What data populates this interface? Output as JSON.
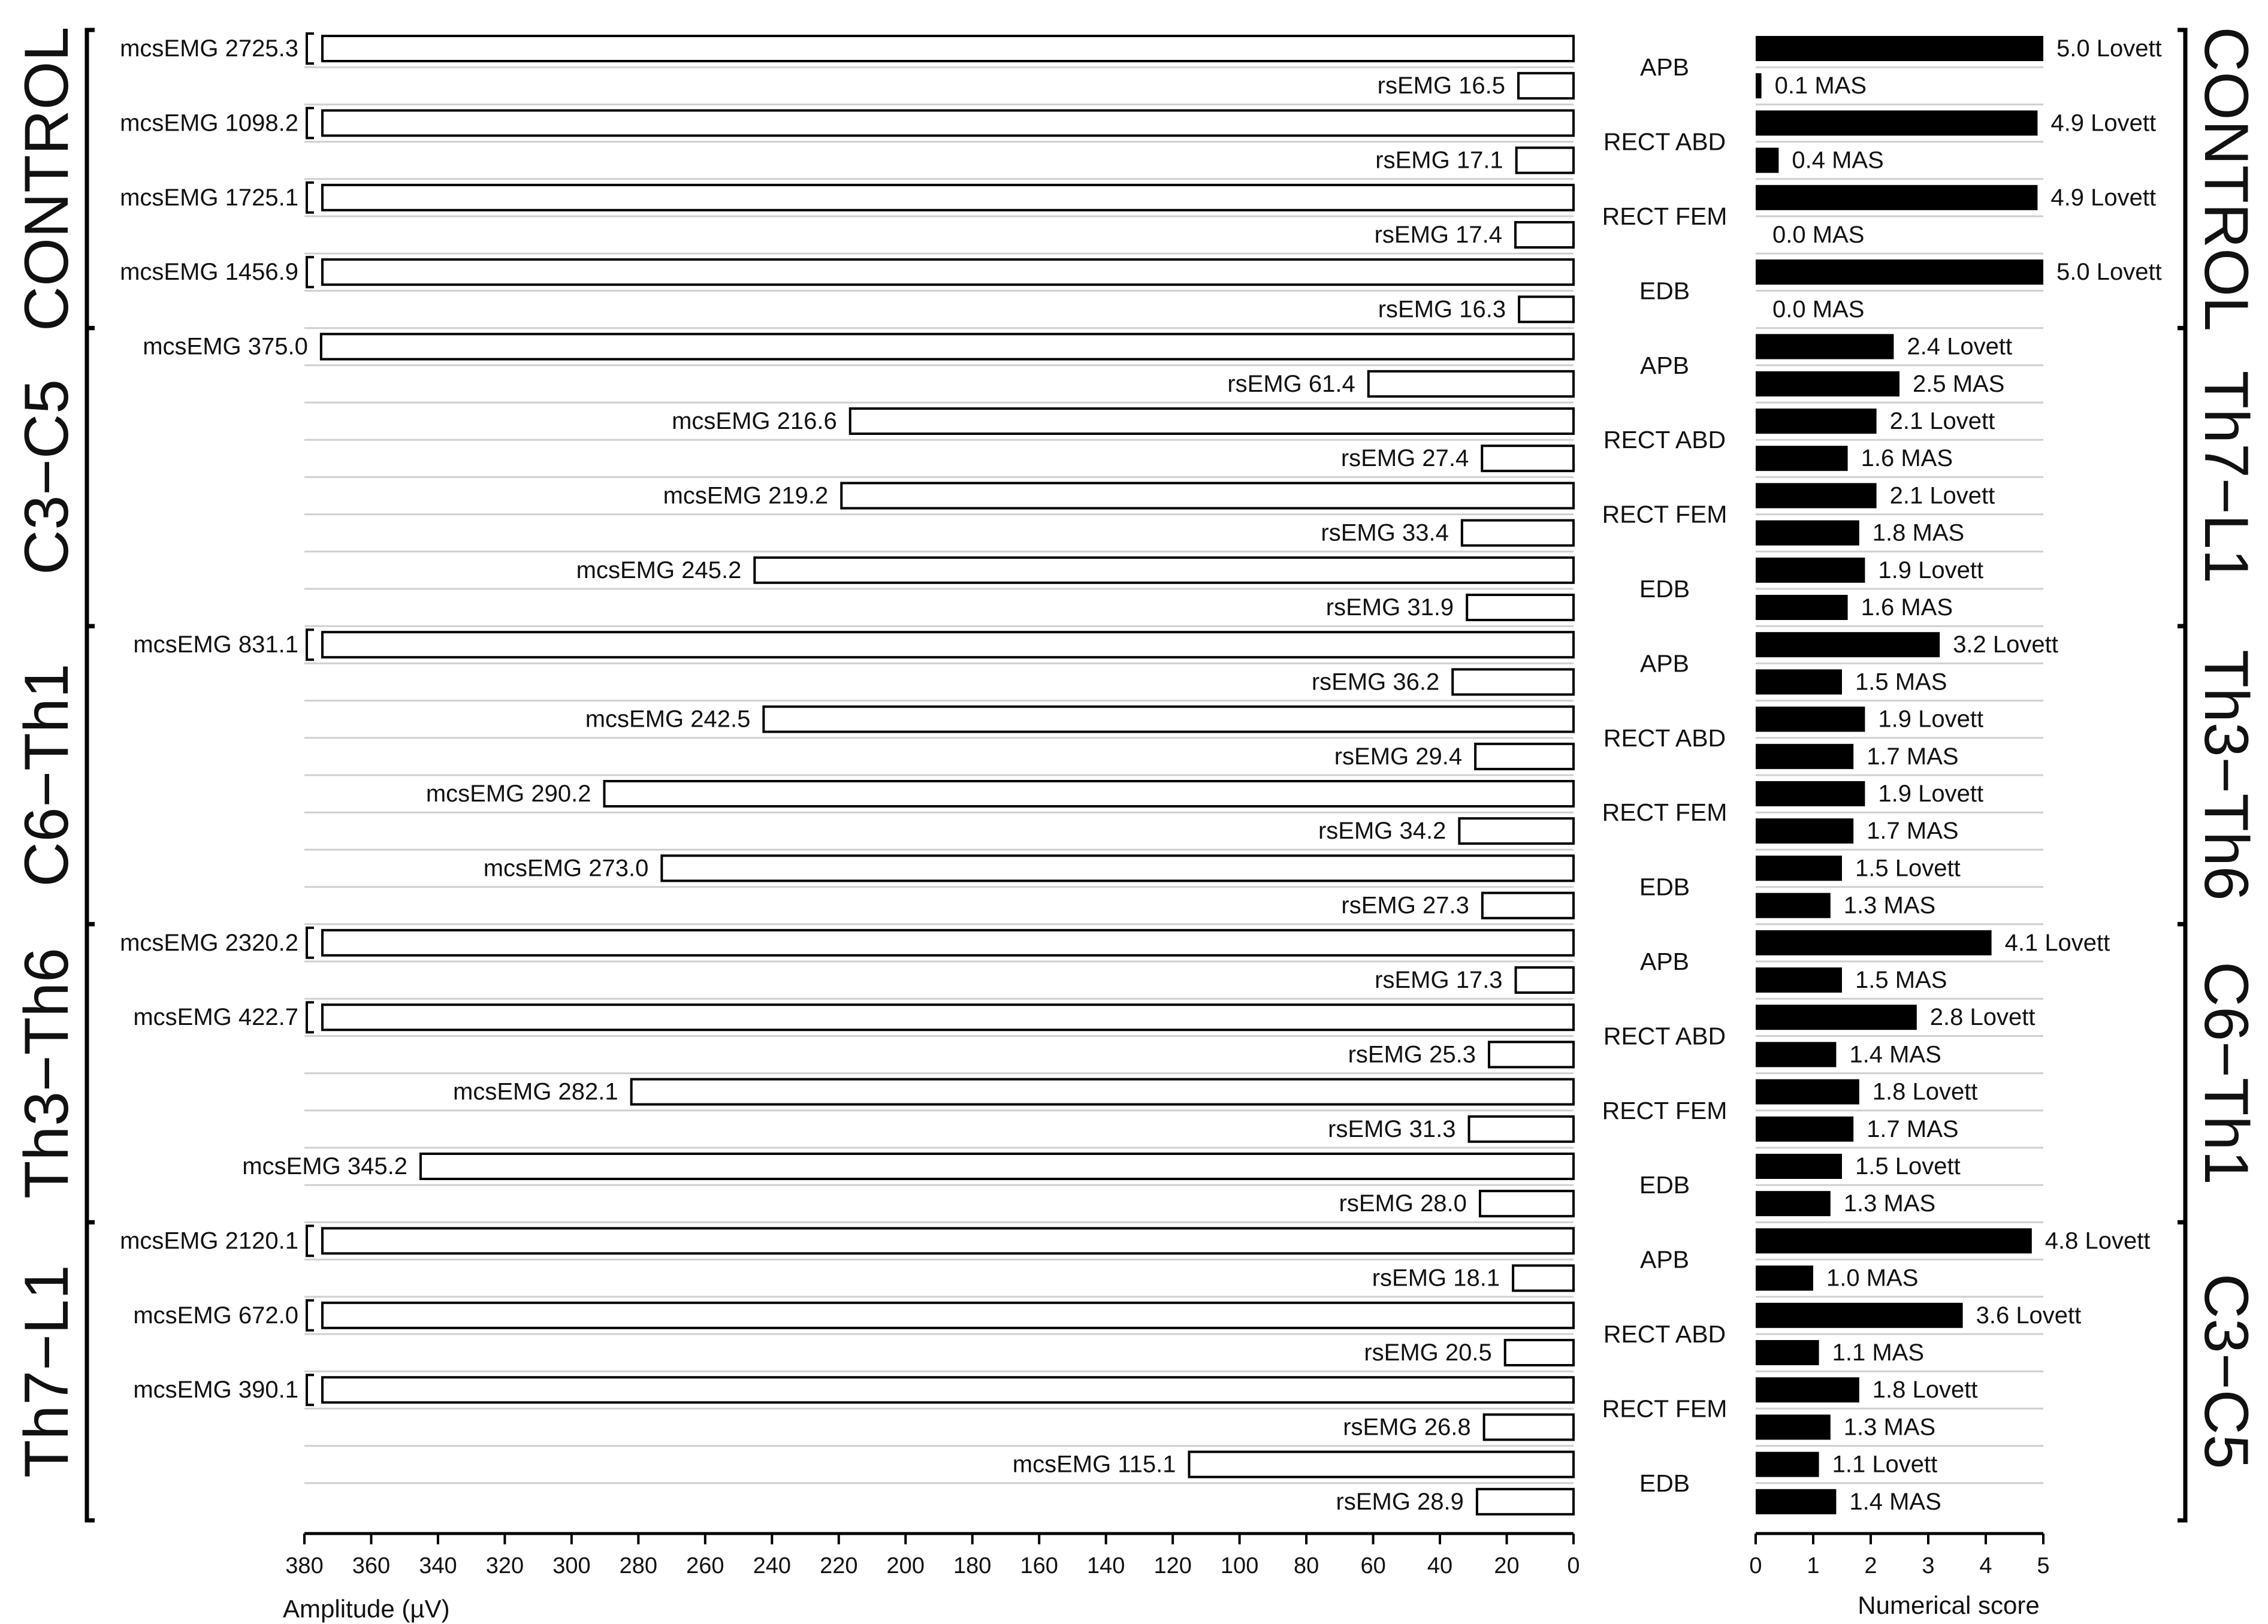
{
  "chart_data": {
    "type": "bar",
    "left_panel": {
      "xlabel": "Amplitude (µV)",
      "xlim": [
        380,
        0
      ],
      "ticks": [
        380,
        360,
        340,
        320,
        300,
        280,
        260,
        240,
        220,
        200,
        180,
        160,
        140,
        120,
        100,
        80,
        60,
        40,
        20,
        0
      ],
      "mcs_prefix": "mcsEMG",
      "rs_prefix": "rsEMG"
    },
    "right_panel": {
      "xlabel": "Numerical score",
      "xlim": [
        0,
        5
      ],
      "ticks": [
        0,
        1,
        2,
        3,
        4,
        5
      ],
      "lovett_suffix": "Lovett",
      "mas_suffix": "MAS"
    },
    "left_groups": [
      "CONTROL",
      "C3−C5",
      "C6−Th1",
      "Th3−Th6",
      "Th7−L1"
    ],
    "right_groups": [
      "CONTROL",
      "Th7−L1",
      "Th3−Th6",
      "C6−Th1",
      "C3−C5"
    ],
    "rows": [
      {
        "muscle": "APB",
        "mcs": 2725.3,
        "mcs_label": "2725.3",
        "rs": 16.5,
        "rs_label": "16.5",
        "lovett": 5.0,
        "lovett_label": "5.0",
        "mas": 0.1,
        "mas_label": "0.1"
      },
      {
        "muscle": "RECT ABD",
        "mcs": 1098.2,
        "mcs_label": "1098.2",
        "rs": 17.1,
        "rs_label": "17.1",
        "lovett": 4.9,
        "lovett_label": "4.9",
        "mas": 0.4,
        "mas_label": "0.4"
      },
      {
        "muscle": "RECT FEM",
        "mcs": 1725.1,
        "mcs_label": "1725.1",
        "rs": 17.4,
        "rs_label": "17.4",
        "lovett": 4.9,
        "lovett_label": "4.9",
        "mas": 0.0,
        "mas_label": "0.0"
      },
      {
        "muscle": "EDB",
        "mcs": 1456.9,
        "mcs_label": "1456.9",
        "rs": 16.3,
        "rs_label": "16.3",
        "lovett": 5.0,
        "lovett_label": "5.0",
        "mas": 0.0,
        "mas_label": "0.0"
      },
      {
        "muscle": "APB",
        "mcs": 375.0,
        "mcs_label": "375.0",
        "rs": 61.4,
        "rs_label": "61.4",
        "lovett": 2.4,
        "lovett_label": "2.4",
        "mas": 2.5,
        "mas_label": "2.5"
      },
      {
        "muscle": "RECT ABD",
        "mcs": 216.6,
        "mcs_label": "216.6",
        "rs": 27.4,
        "rs_label": "27.4",
        "lovett": 2.1,
        "lovett_label": "2.1",
        "mas": 1.6,
        "mas_label": "1.6"
      },
      {
        "muscle": "RECT FEM",
        "mcs": 219.2,
        "mcs_label": "219.2",
        "rs": 33.4,
        "rs_label": "33.4",
        "lovett": 2.1,
        "lovett_label": "2.1",
        "mas": 1.8,
        "mas_label": "1.8"
      },
      {
        "muscle": "EDB",
        "mcs": 245.2,
        "mcs_label": "245.2",
        "rs": 31.9,
        "rs_label": "31.9",
        "lovett": 1.9,
        "lovett_label": "1.9",
        "mas": 1.6,
        "mas_label": "1.6"
      },
      {
        "muscle": "APB",
        "mcs": 831.1,
        "mcs_label": "831.1",
        "rs": 36.2,
        "rs_label": "36.2",
        "lovett": 3.2,
        "lovett_label": "3.2",
        "mas": 1.5,
        "mas_label": "1.5"
      },
      {
        "muscle": "RECT ABD",
        "mcs": 242.5,
        "mcs_label": "242.5",
        "rs": 29.4,
        "rs_label": "29.4",
        "lovett": 1.9,
        "lovett_label": "1.9",
        "mas": 1.7,
        "mas_label": "1.7"
      },
      {
        "muscle": "RECT FEM",
        "mcs": 290.2,
        "mcs_label": "290.2",
        "rs": 34.2,
        "rs_label": "34.2",
        "lovett": 1.9,
        "lovett_label": "1.9",
        "mas": 1.7,
        "mas_label": "1.7"
      },
      {
        "muscle": "EDB",
        "mcs": 273.0,
        "mcs_label": "273.0",
        "rs": 27.3,
        "rs_label": "27.3",
        "lovett": 1.5,
        "lovett_label": "1.5",
        "mas": 1.3,
        "mas_label": "1.3"
      },
      {
        "muscle": "APB",
        "mcs": 2320.2,
        "mcs_label": "2320.2",
        "rs": 17.3,
        "rs_label": "17.3",
        "lovett": 4.1,
        "lovett_label": "4.1",
        "mas": 1.5,
        "mas_label": "1.5"
      },
      {
        "muscle": "RECT ABD",
        "mcs": 422.7,
        "mcs_label": "422.7",
        "rs": 25.3,
        "rs_label": "25.3",
        "lovett": 2.8,
        "lovett_label": "2.8",
        "mas": 1.4,
        "mas_label": "1.4"
      },
      {
        "muscle": "RECT FEM",
        "mcs": 282.1,
        "mcs_label": "282.1",
        "rs": 31.3,
        "rs_label": "31.3",
        "lovett": 1.8,
        "lovett_label": "1.8",
        "mas": 1.7,
        "mas_label": "1.7"
      },
      {
        "muscle": "EDB",
        "mcs": 345.2,
        "mcs_label": "345.2",
        "rs": 28.0,
        "rs_label": "28.0",
        "lovett": 1.5,
        "lovett_label": "1.5",
        "mas": 1.3,
        "mas_label": "1.3"
      },
      {
        "muscle": "APB",
        "mcs": 2120.1,
        "mcs_label": "2120.1",
        "rs": 18.1,
        "rs_label": "18.1",
        "lovett": 4.8,
        "lovett_label": "4.8",
        "mas": 1.0,
        "mas_label": "1.0"
      },
      {
        "muscle": "RECT ABD",
        "mcs": 672.0,
        "mcs_label": "672.0",
        "rs": 20.5,
        "rs_label": "20.5",
        "lovett": 3.6,
        "lovett_label": "3.6",
        "mas": 1.1,
        "mas_label": "1.1"
      },
      {
        "muscle": "RECT FEM",
        "mcs": 390.1,
        "mcs_label": "390.1",
        "rs": 26.8,
        "rs_label": "26.8",
        "lovett": 1.8,
        "lovett_label": "1.8",
        "mas": 1.3,
        "mas_label": "1.3"
      },
      {
        "muscle": "EDB",
        "mcs": 115.1,
        "mcs_label": "115.1",
        "rs": 28.9,
        "rs_label": "28.9",
        "lovett": 1.1,
        "lovett_label": "1.1",
        "mas": 1.4,
        "mas_label": "1.4"
      }
    ]
  }
}
